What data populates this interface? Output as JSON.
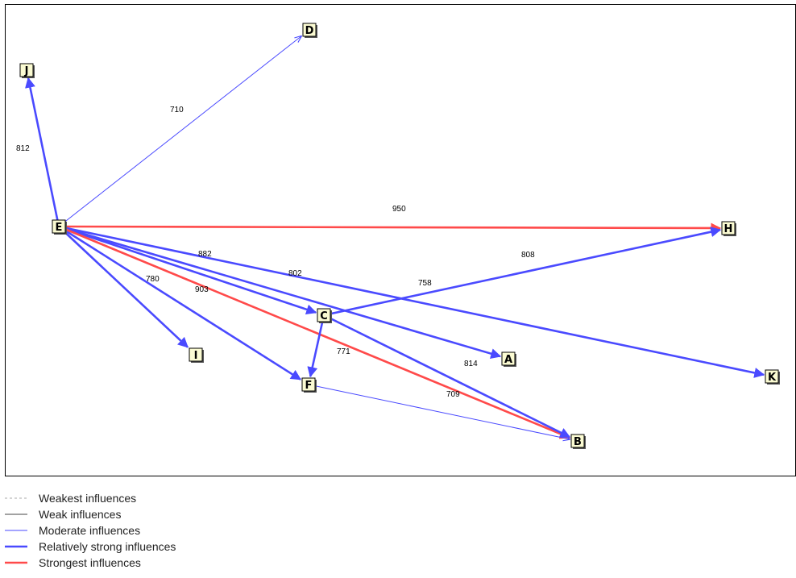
{
  "diagram": {
    "nodes": [
      {
        "id": "E",
        "label": "E"
      },
      {
        "id": "J",
        "label": "J"
      },
      {
        "id": "D",
        "label": "D"
      },
      {
        "id": "H",
        "label": "H"
      },
      {
        "id": "C",
        "label": "C"
      },
      {
        "id": "A",
        "label": "A"
      },
      {
        "id": "K",
        "label": "K"
      },
      {
        "id": "I",
        "label": "I"
      },
      {
        "id": "F",
        "label": "F"
      },
      {
        "id": "B",
        "label": "B"
      }
    ],
    "edges": [
      {
        "from": "E",
        "to": "J",
        "value": "812",
        "strength": "relatively_strong"
      },
      {
        "from": "E",
        "to": "D",
        "value": "710",
        "strength": "moderate"
      },
      {
        "from": "E",
        "to": "H",
        "value": "950",
        "strength": "strongest"
      },
      {
        "from": "E",
        "to": "C",
        "value": "882",
        "strength": "relatively_strong"
      },
      {
        "from": "E",
        "to": "A",
        "value": "802",
        "strength": "relatively_strong"
      },
      {
        "from": "E",
        "to": "K",
        "value": "758",
        "strength": "relatively_strong"
      },
      {
        "from": "E",
        "to": "I",
        "value": "780",
        "strength": "relatively_strong"
      },
      {
        "from": "E",
        "to": "F",
        "value": "903",
        "strength": "relatively_strong"
      },
      {
        "from": "E",
        "to": "B",
        "value": "",
        "strength": "strongest"
      },
      {
        "from": "C",
        "to": "H",
        "value": "808",
        "strength": "relatively_strong"
      },
      {
        "from": "C",
        "to": "F",
        "value": "771",
        "strength": "relatively_strong"
      },
      {
        "from": "C",
        "to": "B",
        "value": "814",
        "strength": "relatively_strong"
      },
      {
        "from": "F",
        "to": "B",
        "value": "709",
        "strength": "moderate"
      }
    ]
  },
  "legend": [
    {
      "key": "weakest",
      "label": "Weakest influences",
      "color": "#aaaaaa"
    },
    {
      "key": "weak",
      "label": "Weak influences",
      "color": "#444444"
    },
    {
      "key": "moderate",
      "label": "Moderate influences",
      "color": "#4a4aff"
    },
    {
      "key": "relatively_strong",
      "label": "Relatively strong influences",
      "color": "#4a4aff"
    },
    {
      "key": "strongest",
      "label": "Strongest influences",
      "color": "#ff4a4a"
    }
  ]
}
